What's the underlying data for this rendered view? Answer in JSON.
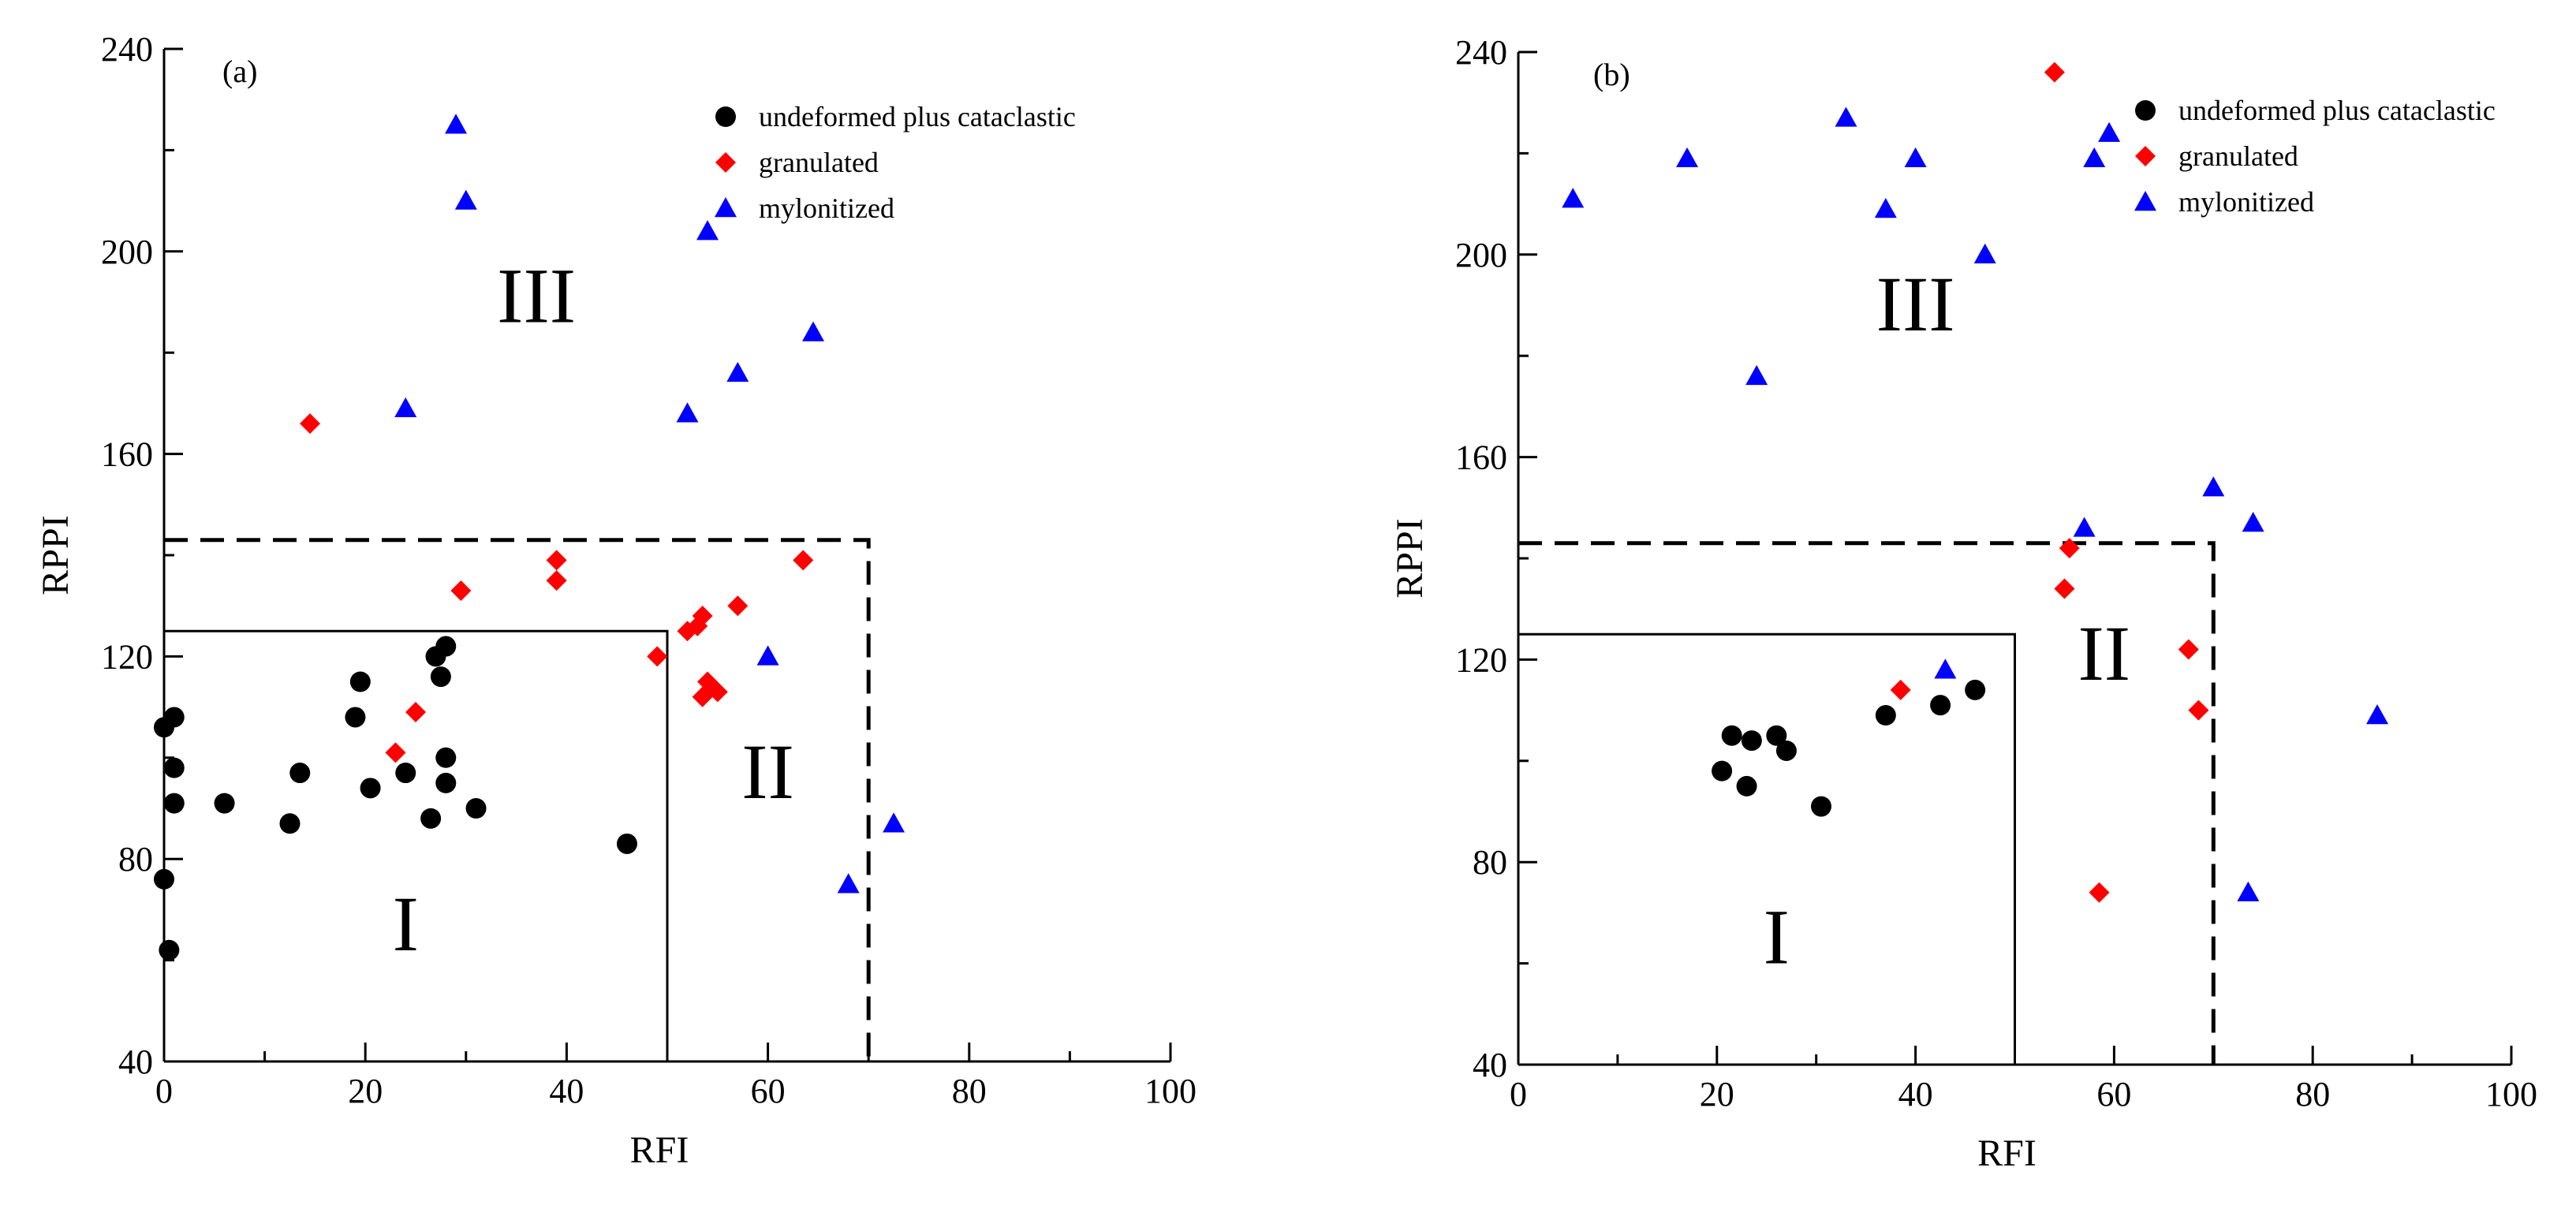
{
  "chart_data": [
    {
      "type": "scatter",
      "panel_label": "(a)",
      "xlabel": "RFI",
      "ylabel": "RPPI",
      "xlim": [
        0,
        100
      ],
      "ylim": [
        40,
        240
      ],
      "xticks": [
        0,
        20,
        40,
        60,
        80,
        100
      ],
      "yticks": [
        40,
        80,
        120,
        160,
        200,
        240
      ],
      "legend": {
        "position": "top-right",
        "entries": [
          {
            "label": "undeformed plus cataclastic",
            "marker": "circle",
            "color": "#000000"
          },
          {
            "label": "granulated",
            "marker": "diamond",
            "color": "#ff0000"
          },
          {
            "label": "mylonitized",
            "marker": "triangle",
            "color": "#0000ff"
          }
        ]
      },
      "regions": [
        {
          "label": "I",
          "x_max": 50,
          "y_max": 125,
          "line": "solid",
          "label_at": [
            24,
            62
          ]
        },
        {
          "label": "II",
          "x_max": 70,
          "y_max": 143,
          "line": "dashed",
          "label_at": [
            60,
            92
          ]
        },
        {
          "label": "III",
          "label_at": [
            37,
            186
          ]
        }
      ],
      "series": [
        {
          "name": "undeformed plus cataclastic",
          "points": [
            [
              0,
              76
            ],
            [
              0.5,
              62
            ],
            [
              0,
              106
            ],
            [
              1,
              108
            ],
            [
              1,
              98
            ],
            [
              1,
              91
            ],
            [
              6,
              91
            ],
            [
              12.5,
              87
            ],
            [
              13.5,
              97
            ],
            [
              19,
              108
            ],
            [
              19.5,
              115
            ],
            [
              20.5,
              94
            ],
            [
              24,
              97
            ],
            [
              26.5,
              88
            ],
            [
              27,
              120
            ],
            [
              27.5,
              116
            ],
            [
              28,
              100
            ],
            [
              28,
              122
            ],
            [
              28,
              95
            ],
            [
              31,
              90
            ],
            [
              46,
              83
            ]
          ]
        },
        {
          "name": "granulated",
          "points": [
            [
              14.5,
              166
            ],
            [
              23,
              101
            ],
            [
              25,
              109
            ],
            [
              29.5,
              133
            ],
            [
              39,
              139
            ],
            [
              39,
              135
            ],
            [
              49,
              120
            ],
            [
              52,
              125
            ],
            [
              53,
              126
            ],
            [
              53.5,
              128
            ],
            [
              53.5,
              112
            ],
            [
              54,
              115
            ],
            [
              55,
              113
            ],
            [
              57,
              130
            ],
            [
              63.5,
              139
            ]
          ]
        },
        {
          "name": "mylonitized",
          "points": [
            [
              29,
              225
            ],
            [
              30,
              210
            ],
            [
              24,
              169
            ],
            [
              54,
              204
            ],
            [
              52,
              168
            ],
            [
              57,
              176
            ],
            [
              64.5,
              184
            ],
            [
              60,
              120
            ],
            [
              68,
              75
            ],
            [
              72.5,
              87
            ]
          ]
        }
      ]
    },
    {
      "type": "scatter",
      "panel_label": "(b)",
      "xlabel": "RFI",
      "ylabel": "RPPI",
      "xlim": [
        0,
        100
      ],
      "ylim": [
        40,
        240
      ],
      "xticks": [
        0,
        20,
        40,
        60,
        80,
        100
      ],
      "yticks": [
        40,
        80,
        120,
        160,
        200,
        240
      ],
      "legend": {
        "position": "top-right",
        "entries": [
          {
            "label": "undeformed plus cataclastic",
            "marker": "circle",
            "color": "#000000"
          },
          {
            "label": "granulated",
            "marker": "diamond",
            "color": "#ff0000"
          },
          {
            "label": "mylonitized",
            "marker": "triangle",
            "color": "#0000ff"
          }
        ]
      },
      "regions": [
        {
          "label": "I",
          "x_max": 50,
          "y_max": 125,
          "line": "solid",
          "label_at": [
            26,
            60
          ]
        },
        {
          "label": "II",
          "x_max": 70,
          "y_max": 143,
          "line": "dashed",
          "label_at": [
            59,
            116
          ]
        },
        {
          "label": "III",
          "label_at": [
            40,
            185
          ]
        }
      ],
      "series": [
        {
          "name": "undeformed plus cataclastic",
          "points": [
            [
              20.5,
              98
            ],
            [
              21.5,
              105
            ],
            [
              23,
              95
            ],
            [
              23.5,
              104
            ],
            [
              26,
              105
            ],
            [
              27,
              102
            ],
            [
              30.5,
              91
            ],
            [
              37,
              109
            ],
            [
              42.5,
              111
            ],
            [
              46,
              114
            ]
          ]
        },
        {
          "name": "granulated",
          "points": [
            [
              38.5,
              114
            ],
            [
              54,
              236
            ],
            [
              55,
              134
            ],
            [
              55.5,
              142
            ],
            [
              58.5,
              74
            ],
            [
              67.5,
              122
            ],
            [
              68.5,
              110
            ]
          ]
        },
        {
          "name": "mylonitized",
          "points": [
            [
              5.5,
              211
            ],
            [
              17,
              219
            ],
            [
              24,
              176
            ],
            [
              33,
              227
            ],
            [
              37,
              209
            ],
            [
              40,
              219
            ],
            [
              43,
              118
            ],
            [
              47,
              200
            ],
            [
              57,
              146
            ],
            [
              58,
              219
            ],
            [
              59.5,
              224
            ],
            [
              70,
              154
            ],
            [
              73.5,
              74
            ],
            [
              74,
              147
            ],
            [
              86.5,
              109
            ]
          ]
        }
      ]
    }
  ]
}
